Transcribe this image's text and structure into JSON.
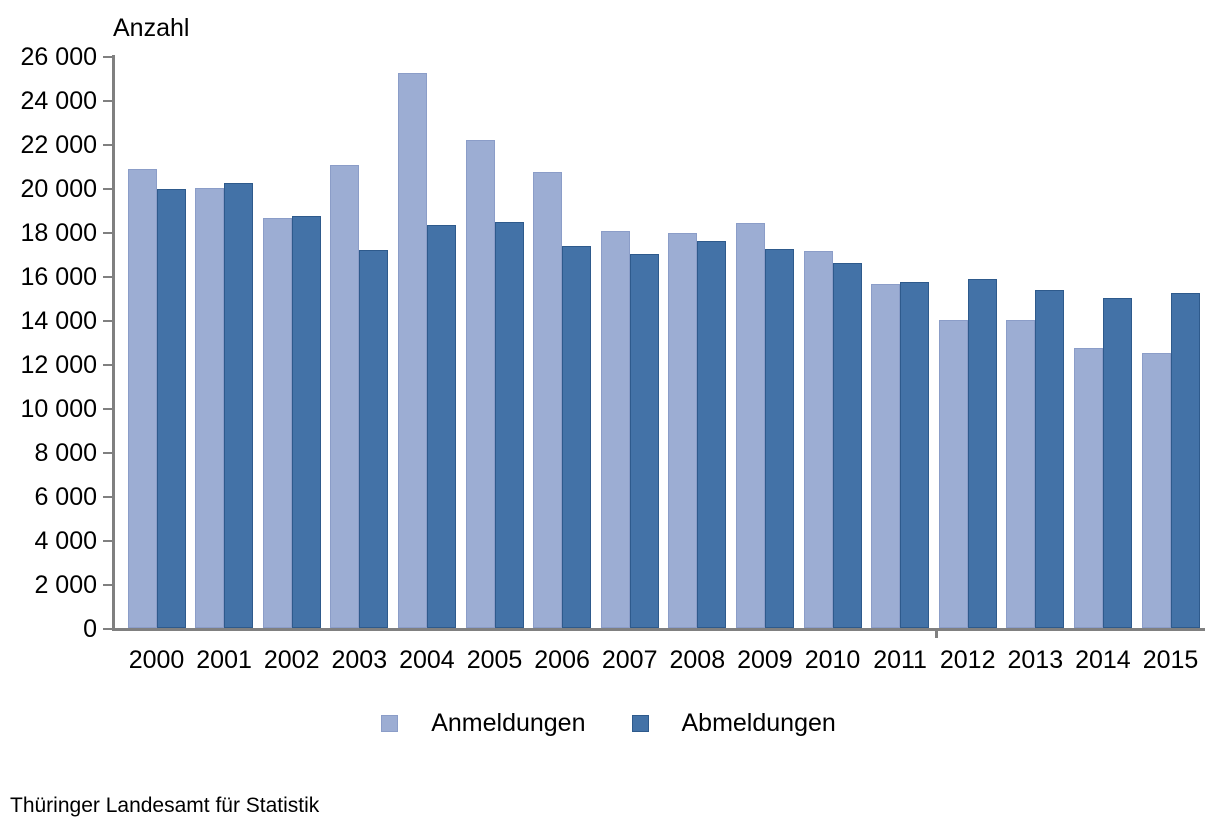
{
  "chart_data": {
    "type": "bar",
    "title": "Anzahl",
    "xlabel": "",
    "ylabel": "Anzahl",
    "categories": [
      "2000",
      "2001",
      "2002",
      "2003",
      "2004",
      "2005",
      "2006",
      "2007",
      "2008",
      "2009",
      "2010",
      "2011",
      "2012",
      "2013",
      "2014",
      "2015"
    ],
    "series": [
      {
        "name": "Anmeldungen",
        "color": "#9CADD3",
        "border_color": "#8B9DC8",
        "values": [
          20850,
          20000,
          18650,
          21050,
          25250,
          22200,
          20750,
          18050,
          17950,
          18400,
          17150,
          15650,
          14000,
          14000,
          12750,
          12500
        ]
      },
      {
        "name": "Abmeldungen",
        "color": "#4372A7",
        "border_color": "#2E5A8C",
        "values": [
          19950,
          20250,
          18750,
          17200,
          18300,
          18450,
          17350,
          17000,
          17600,
          17250,
          16600,
          15750,
          15850,
          15350,
          15000,
          15250
        ]
      }
    ],
    "ylim": [
      0,
      26000
    ],
    "y_tick_step": 2000,
    "y_tick_labels": [
      "0",
      "2 000",
      "4 000",
      "6 000",
      "8 000",
      "10 000",
      "12 000",
      "14 000",
      "16 000",
      "18 000",
      "20 000",
      "22 000",
      "24 000",
      "26 000"
    ],
    "grid": false,
    "legend_position": "bottom-center",
    "axis_color": "#808080",
    "x_axis_divider_between": [
      "2011",
      "2012"
    ]
  },
  "footer": {
    "source": "Thüringer Landesamt für Statistik"
  }
}
